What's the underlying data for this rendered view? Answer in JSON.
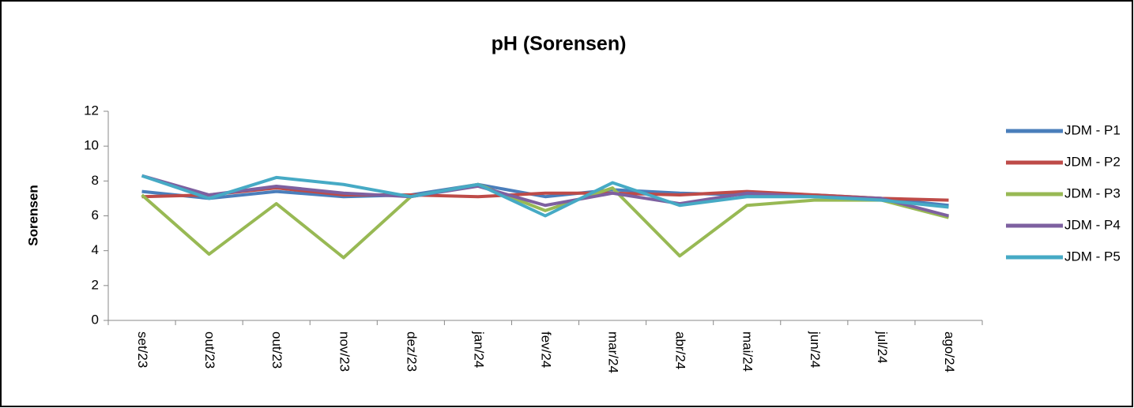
{
  "chart_data": {
    "type": "line",
    "title": "pH (Sorensen)",
    "y_label": "Sorensen",
    "categories": [
      "set/23",
      "out/23",
      "out/23",
      "nov/23",
      "dez/23",
      "jan/24",
      "fev/24",
      "mar/24",
      "abr/24",
      "mai/24",
      "jun/24",
      "jul/24",
      "ago/24"
    ],
    "series": [
      {
        "name": "JDM - P1",
        "color": "#4a7ebb",
        "values": [
          7.4,
          7.0,
          7.4,
          7.1,
          7.2,
          7.8,
          7.1,
          7.5,
          7.3,
          7.2,
          7.2,
          7.0,
          6.6
        ]
      },
      {
        "name": "JDM - P2",
        "color": "#be4b48",
        "values": [
          7.1,
          7.2,
          7.6,
          7.2,
          7.2,
          7.1,
          7.3,
          7.3,
          7.2,
          7.4,
          7.2,
          7.0,
          6.9
        ]
      },
      {
        "name": "JDM - P3",
        "color": "#98b954",
        "values": [
          7.2,
          3.8,
          6.7,
          3.6,
          7.1,
          7.8,
          6.3,
          7.6,
          3.7,
          6.6,
          6.9,
          6.9,
          5.9
        ]
      },
      {
        "name": "JDM - P4",
        "color": "#7d60a0",
        "values": [
          8.3,
          7.2,
          7.7,
          7.3,
          7.1,
          7.7,
          6.6,
          7.3,
          6.7,
          7.3,
          7.1,
          7.0,
          6.0
        ]
      },
      {
        "name": "JDM - P5",
        "color": "#46aac5",
        "values": [
          8.3,
          7.0,
          8.2,
          7.8,
          7.1,
          7.8,
          6.0,
          7.9,
          6.6,
          7.1,
          7.1,
          6.9,
          6.5
        ]
      }
    ],
    "ylim": [
      0,
      12
    ],
    "yticks": [
      0,
      2,
      4,
      6,
      8,
      10,
      12
    ],
    "grid": false,
    "legend": "right"
  }
}
